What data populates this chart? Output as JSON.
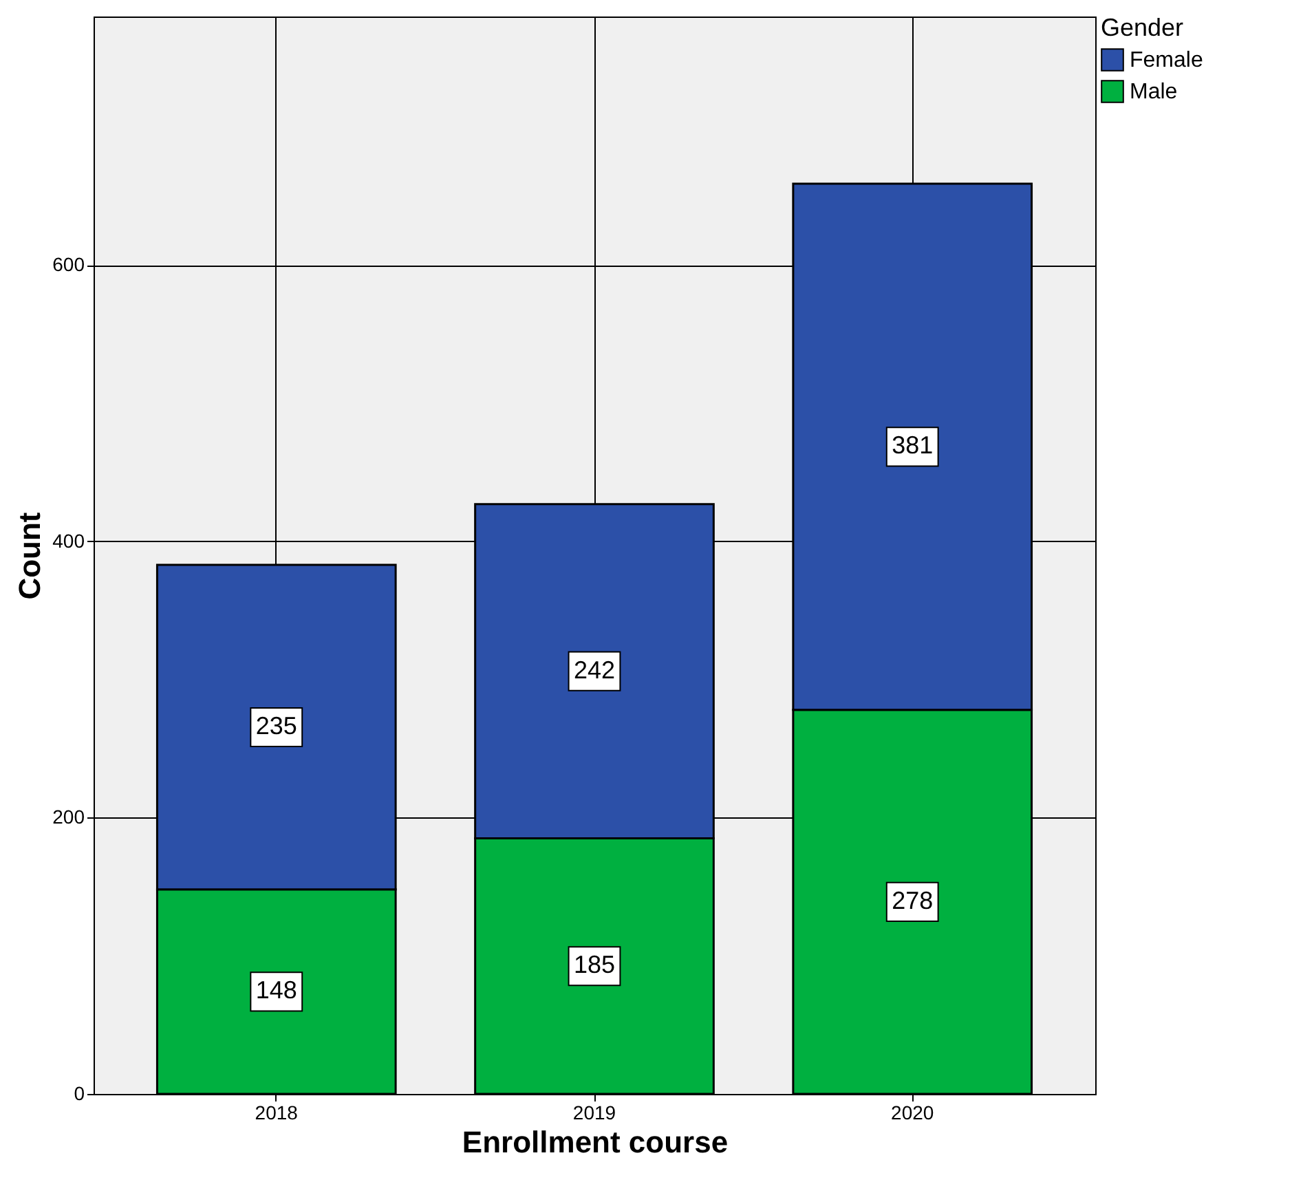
{
  "chart_data": {
    "type": "bar",
    "stacked": true,
    "xlabel": "Enrollment course",
    "ylabel": "Count",
    "legend_title": "Gender",
    "categories": [
      "2018",
      "2019",
      "2020"
    ],
    "series": [
      {
        "name": "Male",
        "color": "#00b040",
        "values": [
          148,
          185,
          278
        ]
      },
      {
        "name": "Female",
        "color": "#2c50a8",
        "values": [
          235,
          242,
          381
        ]
      }
    ],
    "ylim": [
      0,
      780
    ],
    "yticks": [
      0,
      200,
      400,
      600
    ],
    "grid": true,
    "legend": "top right",
    "data_labels": true
  }
}
